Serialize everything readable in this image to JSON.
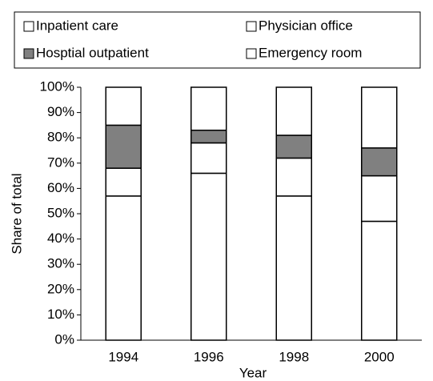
{
  "chart_data": {
    "type": "stacked_bar",
    "xlabel": "Year",
    "ylabel": "Share of total",
    "categories": [
      "1994",
      "1996",
      "1998",
      "2000"
    ],
    "series": [
      {
        "name": "Inpatient care",
        "color": "#ffffff",
        "values": [
          57,
          66,
          57,
          47
        ]
      },
      {
        "name": "Physician office",
        "color": "#ffffff",
        "values": [
          11,
          12,
          15,
          18
        ]
      },
      {
        "name": "Hosptial outpatient",
        "color": "#808080",
        "values": [
          17,
          5,
          9,
          11
        ]
      },
      {
        "name": "Emergency room",
        "color": "#ffffff",
        "values": [
          15,
          17,
          19,
          24
        ]
      }
    ],
    "ylim": [
      0,
      100
    ],
    "yticks": [
      {
        "value": 0,
        "label": "0%"
      },
      {
        "value": 10,
        "label": "10%"
      },
      {
        "value": 20,
        "label": "20%"
      },
      {
        "value": 30,
        "label": "30%"
      },
      {
        "value": 40,
        "label": "40%"
      },
      {
        "value": 50,
        "label": "50%"
      },
      {
        "value": 60,
        "label": "60%"
      },
      {
        "value": 70,
        "label": "70%"
      },
      {
        "value": 80,
        "label": "80%"
      },
      {
        "value": 90,
        "label": "90%"
      },
      {
        "value": 100,
        "label": "100%"
      }
    ],
    "legend": "top"
  }
}
